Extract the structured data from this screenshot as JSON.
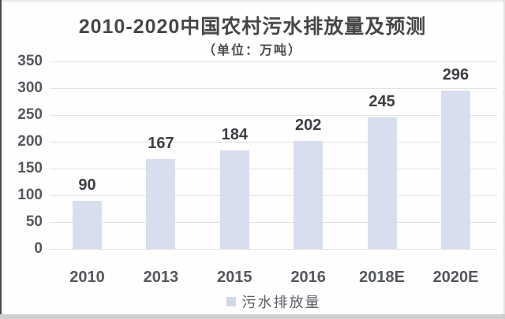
{
  "chart_data": {
    "type": "bar",
    "title": "2010-2020中国农村污水排放量及预测",
    "subtitle": "（单位：万吨）",
    "categories": [
      "2010",
      "2013",
      "2015",
      "2016",
      "2018E",
      "2020E"
    ],
    "values": [
      90,
      167,
      184,
      202,
      245,
      296
    ],
    "yticks": [
      0,
      50,
      100,
      150,
      200,
      250,
      300,
      350
    ],
    "ylim": [
      0,
      350
    ],
    "grid": true,
    "data_labels": true,
    "legend": {
      "label": "污水排放量",
      "position": "bottom"
    },
    "colors": {
      "bar_fill": "#d8deee",
      "legend_marker": "#d3d8e5",
      "gridline": "#e2e2e2",
      "title_text": "#474747",
      "axis_text": "#55585e",
      "value_text": "#3d3f44"
    }
  }
}
